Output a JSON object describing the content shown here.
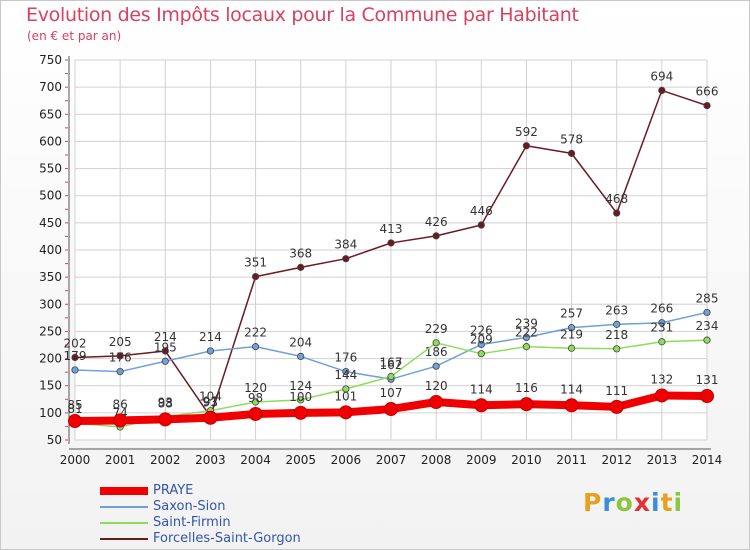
{
  "header": {
    "title": "Evolution des Impôts locaux pour la Commune par Habitant",
    "subtitle": "(en € et par an)"
  },
  "logo": {
    "letters": [
      "P",
      "r",
      "o",
      "x",
      "i",
      "t",
      "i"
    ],
    "colors": [
      "#e8a020",
      "#3a8fd8",
      "#8cc63f",
      "#e83030",
      "#3a8fd8",
      "#e8a020",
      "#8cc63f"
    ]
  },
  "chart_data": {
    "type": "line",
    "title": "Evolution des Impôts locaux pour la Commune par Habitant",
    "subtitle": "(en € et par an)",
    "x": [
      2000,
      2001,
      2002,
      2003,
      2004,
      2005,
      2006,
      2007,
      2008,
      2009,
      2010,
      2011,
      2012,
      2013,
      2014
    ],
    "ylim": [
      50,
      750
    ],
    "yticks": [
      50,
      100,
      150,
      200,
      250,
      300,
      350,
      400,
      450,
      500,
      550,
      600,
      650,
      700,
      750
    ],
    "grid": true,
    "legend_position": "bottom-left",
    "series": [
      {
        "name": "Forcelles-Saint-Gorgon",
        "color": "#6b1a22",
        "values": [
          202,
          205,
          214,
          93,
          351,
          368,
          384,
          413,
          426,
          446,
          592,
          578,
          468,
          694,
          666
        ]
      },
      {
        "name": "Saxon-Sion",
        "color": "#6fa0d8",
        "values": [
          179,
          176,
          195,
          214,
          222,
          204,
          176,
          162,
          186,
          226,
          239,
          257,
          263,
          266,
          285
        ]
      },
      {
        "name": "Saint-Firmin",
        "color": "#8fdc5a",
        "values": [
          81,
          74,
          93,
          104,
          120,
          124,
          144,
          167,
          229,
          209,
          222,
          219,
          218,
          231,
          234
        ]
      },
      {
        "name": "PRAYE",
        "color": "#f00000",
        "values": [
          85,
          86,
          88,
          91,
          98,
          100,
          101,
          107,
          120,
          114,
          116,
          114,
          111,
          132,
          131
        ]
      }
    ]
  }
}
